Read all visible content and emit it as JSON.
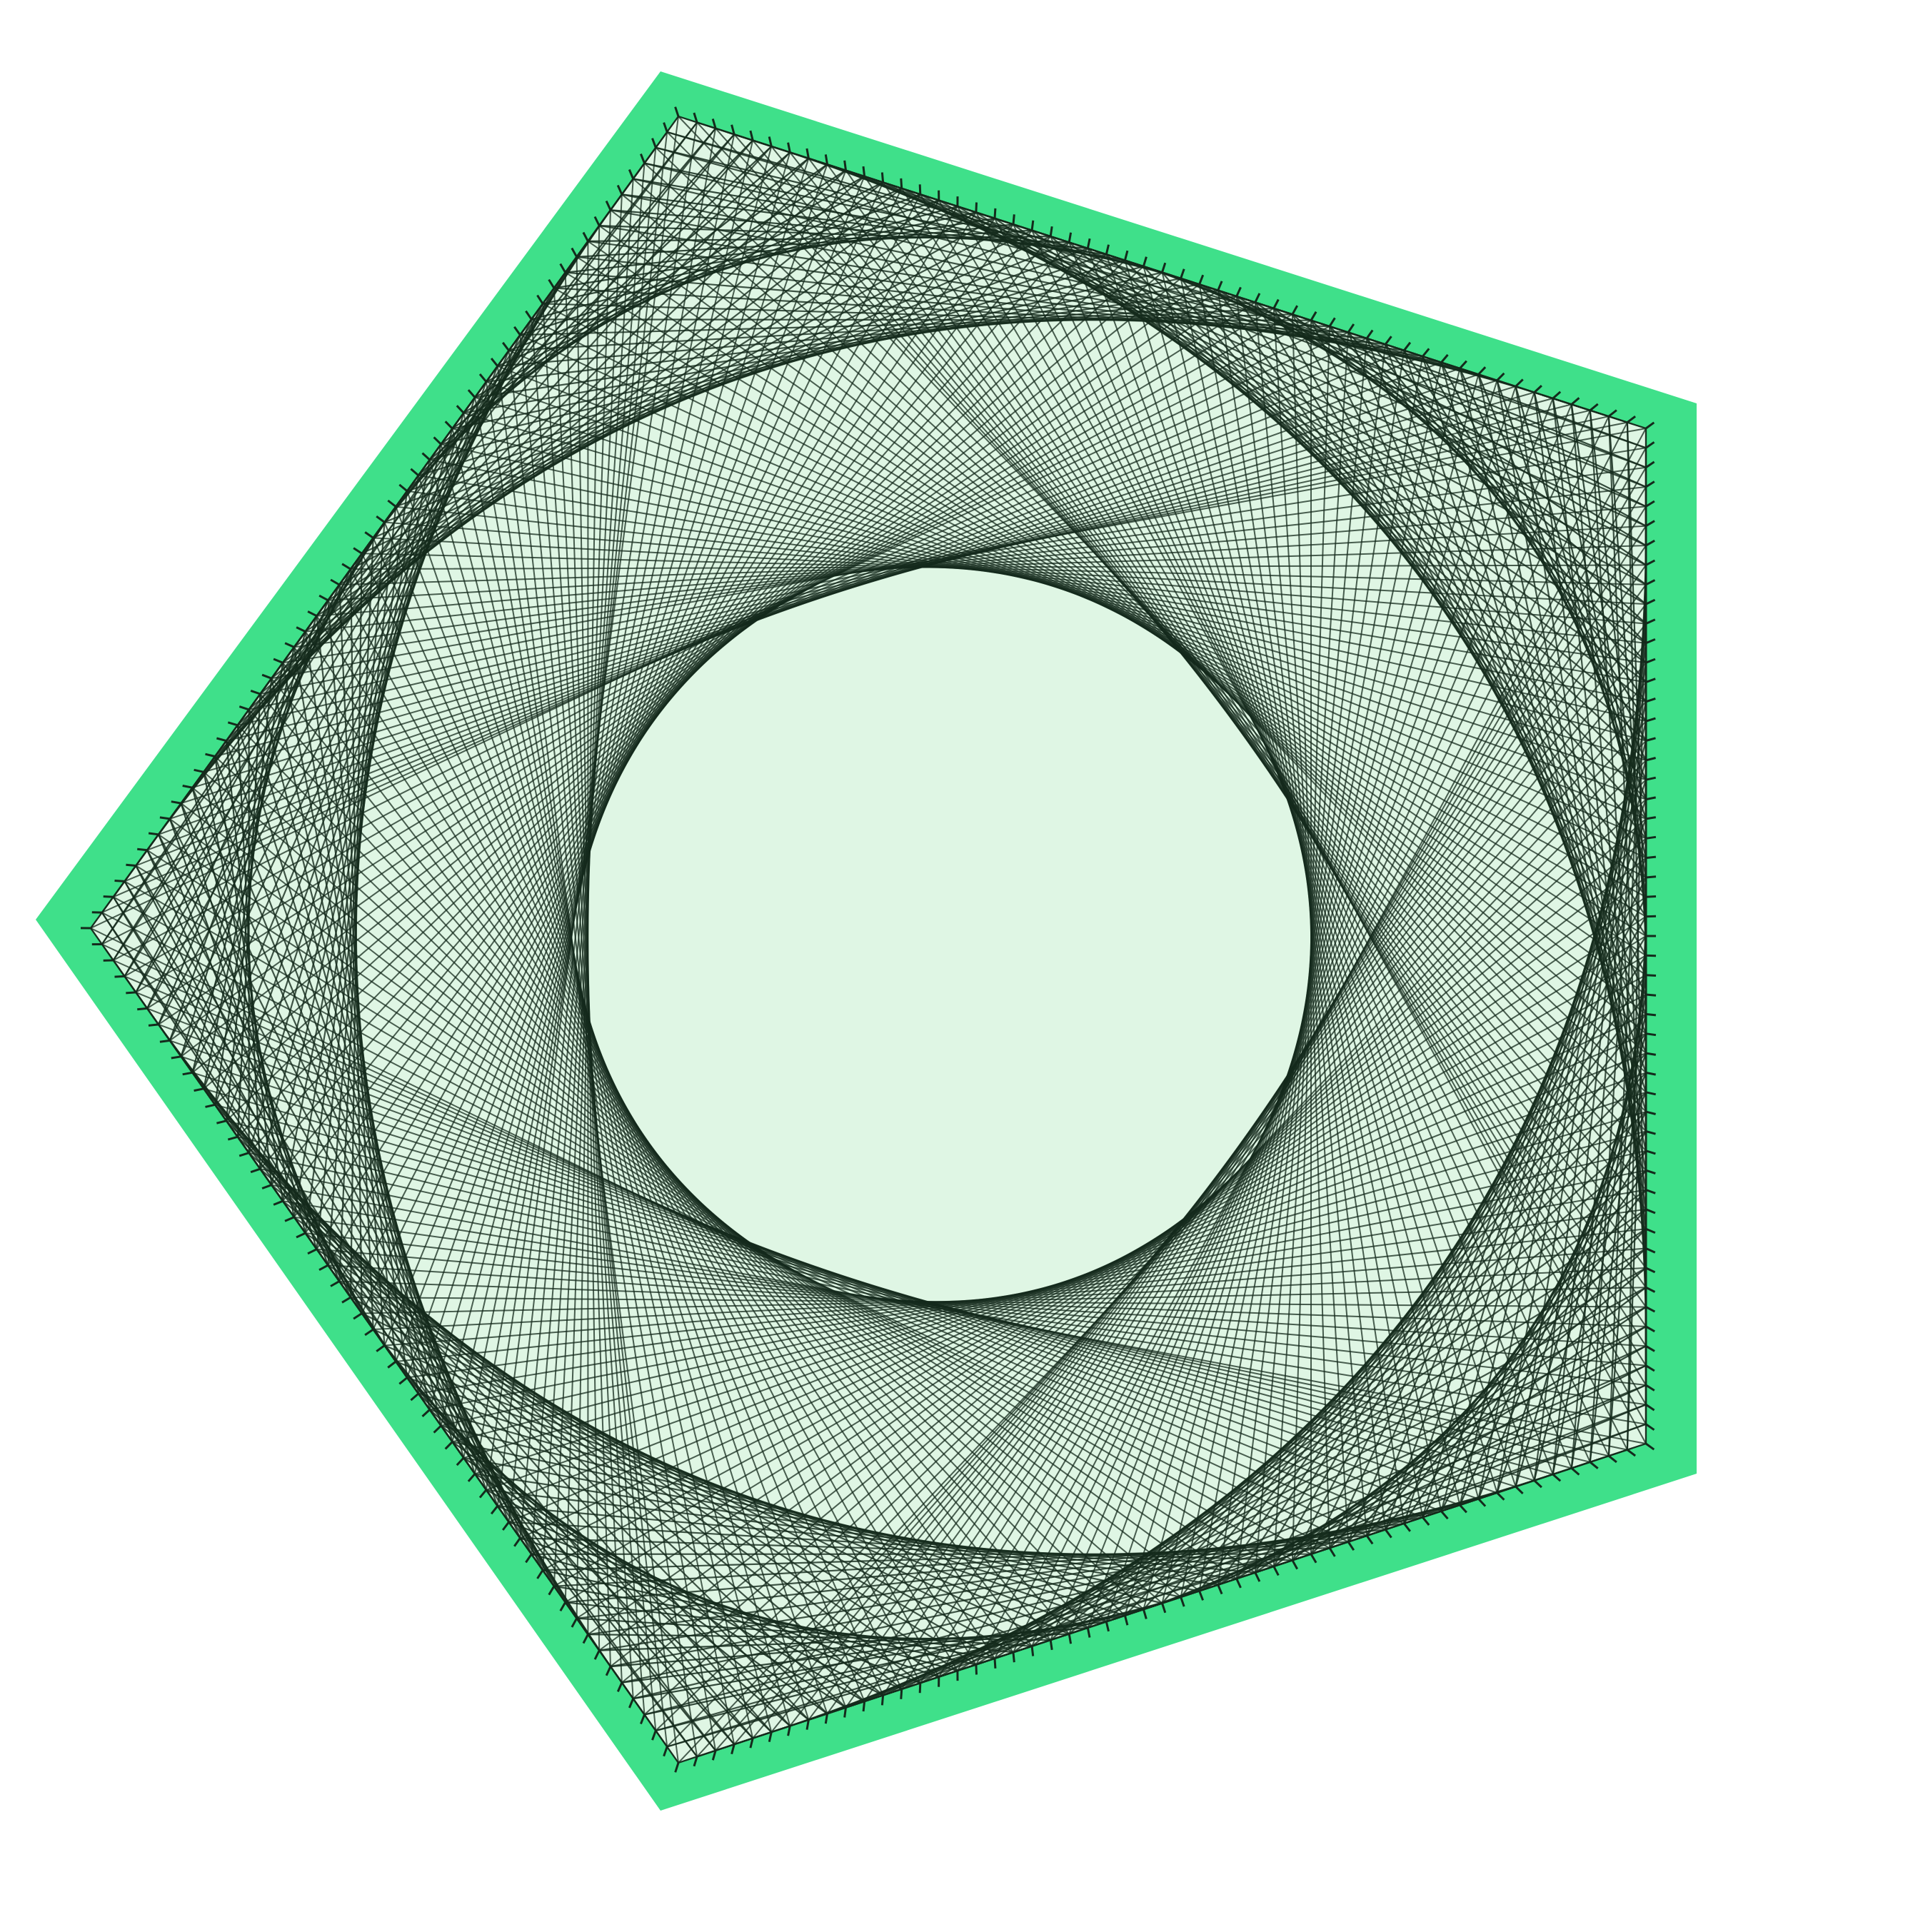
{
  "artwork": {
    "shape": "pentagon",
    "colors": {
      "background": "#ffffff",
      "border_fill": "#3fe08a",
      "inner_fill": "#dff6e4",
      "thread": "#142a1c"
    }
  }
}
